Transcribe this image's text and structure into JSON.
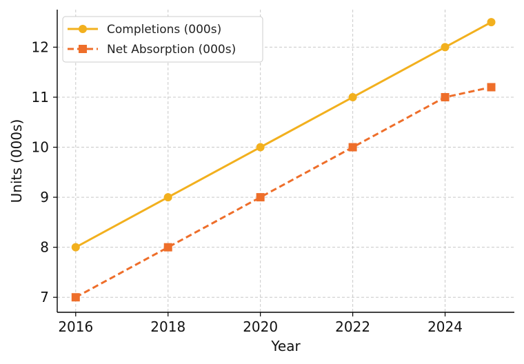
{
  "chart_data": {
    "type": "line",
    "xlabel": "Year",
    "ylabel": "Units (000s)",
    "xlim": [
      2015.6,
      2025.5
    ],
    "ylim": [
      6.7,
      12.75
    ],
    "x_ticks": [
      2016,
      2018,
      2020,
      2022,
      2024
    ],
    "y_ticks": [
      7,
      8,
      9,
      10,
      11,
      12
    ],
    "grid": true,
    "legend_position": "top-left",
    "series": [
      {
        "name": "Completions (000s)",
        "color": "#f2b01e",
        "marker": "circle",
        "line_style": "solid",
        "points": [
          [
            2016,
            8
          ],
          [
            2018,
            9
          ],
          [
            2020,
            10
          ],
          [
            2022,
            11
          ],
          [
            2024,
            12
          ],
          [
            2025,
            12.5
          ]
        ]
      },
      {
        "name": "Net Absorption (000s)",
        "color": "#ee6e2a",
        "marker": "square",
        "line_style": "dashed",
        "points": [
          [
            2016,
            7
          ],
          [
            2018,
            8
          ],
          [
            2020,
            9
          ],
          [
            2022,
            10
          ],
          [
            2024,
            11
          ],
          [
            2025,
            11.2
          ]
        ]
      }
    ]
  }
}
